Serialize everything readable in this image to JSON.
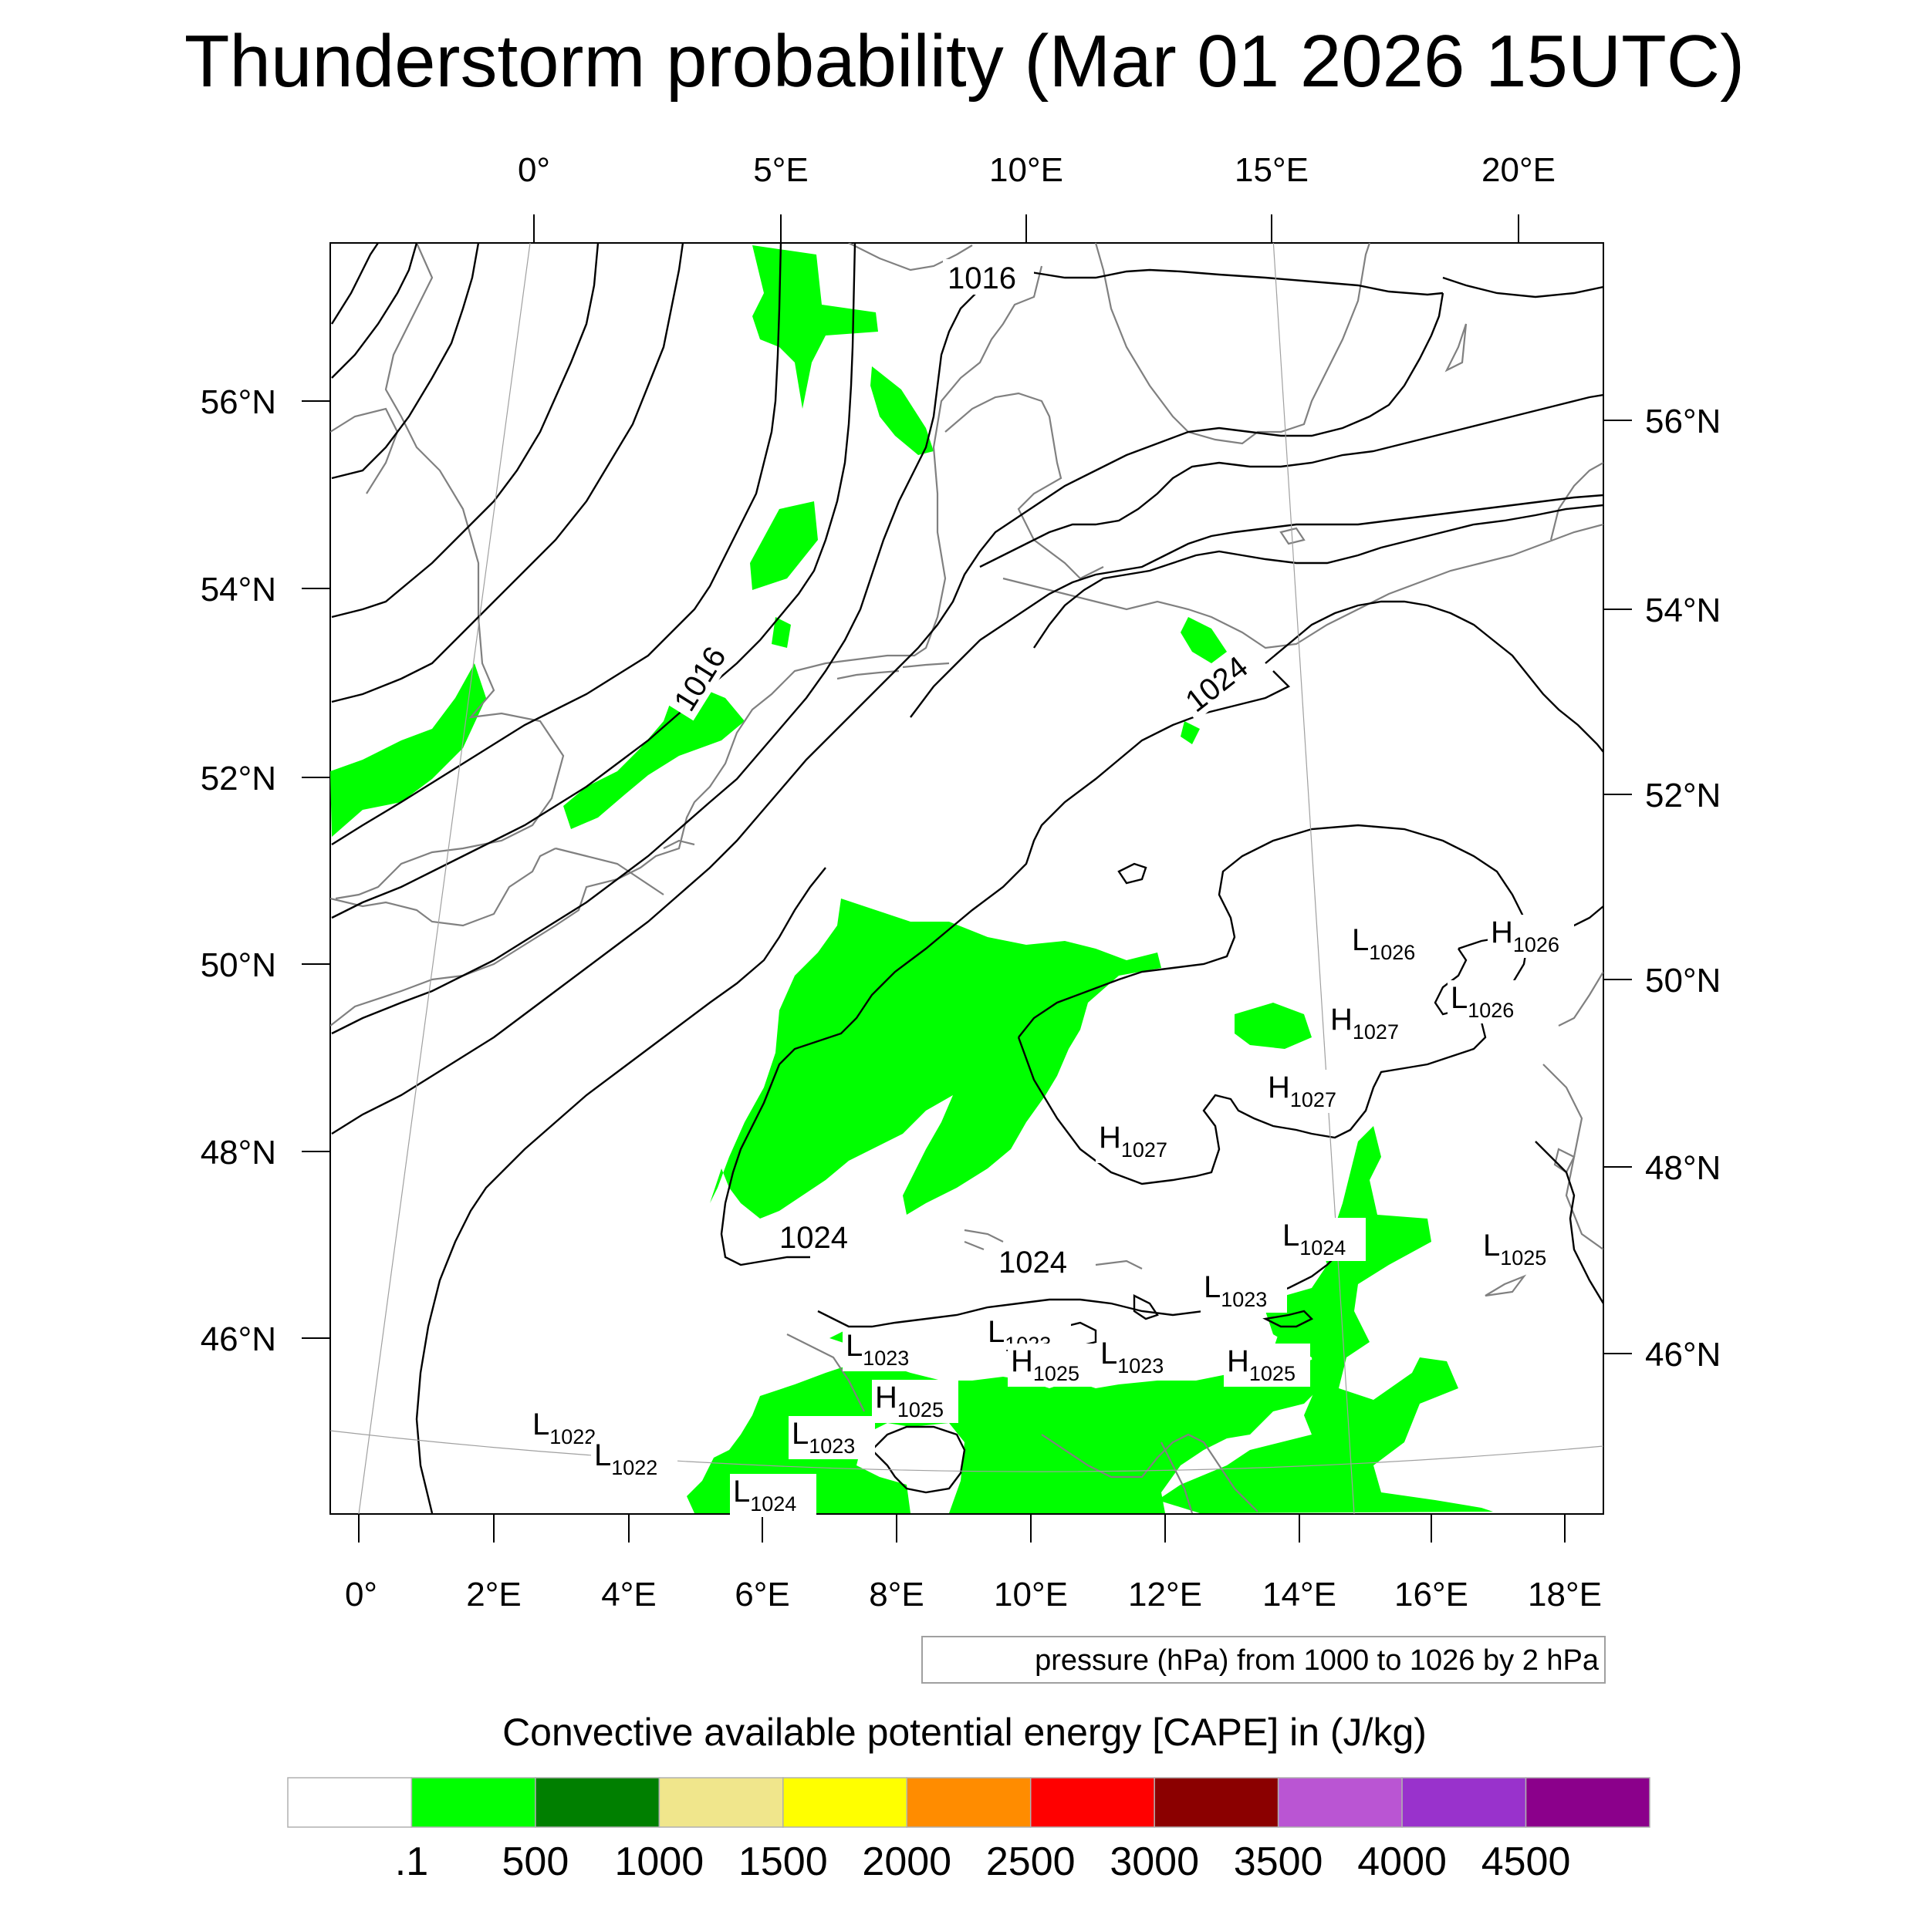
{
  "title": "Thunderstorm probability (Mar 01 2026 15UTC)",
  "top_lon_labels": [
    "0°",
    "5°E",
    "10°E",
    "15°E",
    "20°E"
  ],
  "bottom_lon_labels": [
    "0°",
    "2°E",
    "4°E",
    "6°E",
    "8°E",
    "10°E",
    "12°E",
    "14°E",
    "16°E",
    "18°E"
  ],
  "left_lat_labels": [
    "56°N",
    "54°N",
    "52°N",
    "50°N",
    "48°N",
    "46°N"
  ],
  "right_lat_labels": [
    "56°N",
    "54°N",
    "52°N",
    "50°N",
    "48°N",
    "46°N"
  ],
  "isobar_labels": [
    "1016",
    "1016",
    "1024",
    "1024",
    "1024"
  ],
  "pressure_centers": [
    {
      "kind": "L",
      "value": "1026"
    },
    {
      "kind": "H",
      "value": "1026"
    },
    {
      "kind": "L",
      "value": "1026"
    },
    {
      "kind": "H",
      "value": "1027"
    },
    {
      "kind": "H",
      "value": "1027"
    },
    {
      "kind": "H",
      "value": "1027"
    },
    {
      "kind": "L",
      "value": "1024"
    },
    {
      "kind": "L",
      "value": "1025"
    },
    {
      "kind": "L",
      "value": "1023"
    },
    {
      "kind": "L",
      "value": "1023"
    },
    {
      "kind": "L",
      "value": "1023"
    },
    {
      "kind": "H",
      "value": "1025"
    },
    {
      "kind": "H",
      "value": "1025"
    },
    {
      "kind": "H",
      "value": "1025"
    },
    {
      "kind": "L",
      "value": "1023"
    },
    {
      "kind": "L",
      "value": "1022"
    },
    {
      "kind": "L",
      "value": "1022"
    },
    {
      "kind": "L",
      "value": "1023"
    },
    {
      "kind": "L",
      "value": "1024"
    }
  ],
  "contour_info": "pressure (hPa) from 1000 to 1026 by 2 hPa",
  "colorbar": {
    "title": "Convective available potential energy [CAPE] in (J/kg)",
    "colors": [
      "#ffffff",
      "#00ff00",
      "#007f00",
      "#f0e68c",
      "#ffff00",
      "#ff8c00",
      "#ff0000",
      "#8b0000",
      "#ba55d3",
      "#9932cc",
      "#8b008b"
    ],
    "labels": [
      ".1",
      "500",
      "1000",
      "1500",
      "2000",
      "2500",
      "3000",
      "3500",
      "4000",
      "4500"
    ]
  },
  "colors": {
    "cape_green": "#00ff00",
    "coast": "#808080",
    "isobar": "#000000"
  }
}
